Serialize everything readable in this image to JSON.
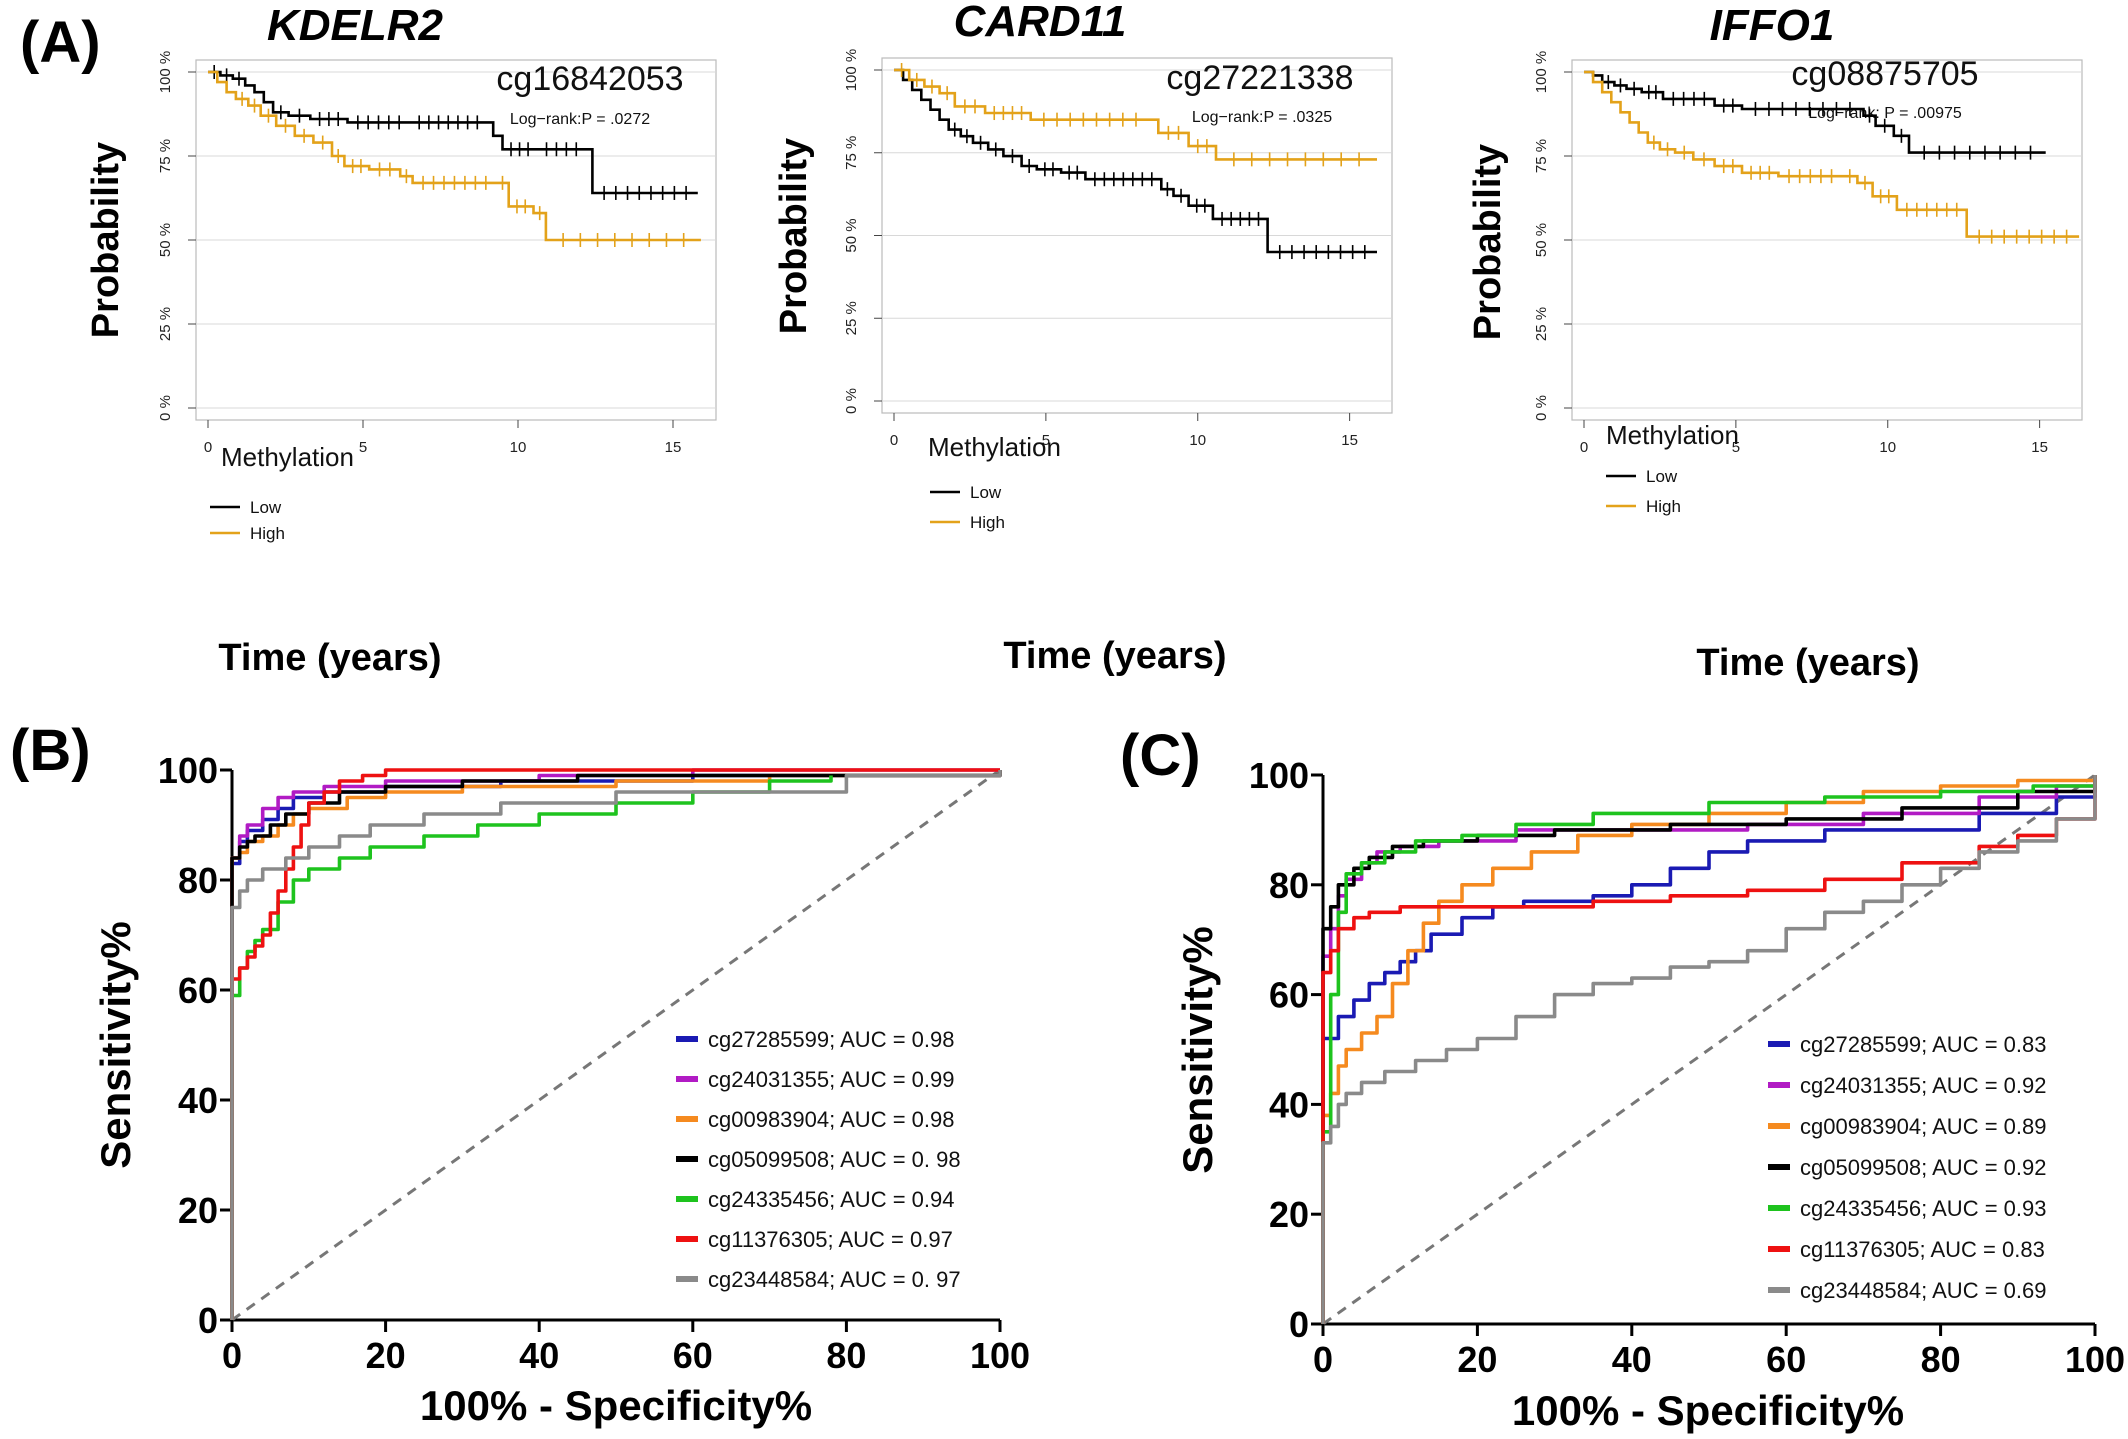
{
  "panels": {
    "a": "(A)",
    "b": "(B)",
    "c": "(C)"
  },
  "chart_data": [
    {
      "type": "line",
      "subtype": "kaplan-meier",
      "title": "KDELR2",
      "probe": "cg16842053",
      "logrank": "Log−rank:P = .0272",
      "xlabel": "Time (years)",
      "ylabel": "Probability",
      "xlim": [
        0,
        16
      ],
      "ylim": [
        0,
        100
      ],
      "xticks": [
        "0",
        "5",
        "10",
        "15"
      ],
      "yticks": [
        "0 %",
        "25 %",
        "50 %",
        "75 %",
        "100 %"
      ],
      "legend_title": "Methylation",
      "legend": [
        "Low",
        "High"
      ],
      "grid": true,
      "series": [
        {
          "name": "Low",
          "color": "#000000",
          "x": [
            0,
            0.4,
            0.8,
            1.2,
            1.5,
            1.8,
            2.1,
            2.6,
            3.3,
            4.5,
            6.5,
            9.0,
            9.2,
            9.5,
            10.6,
            12.2,
            12.4,
            15.8
          ],
          "y": [
            100,
            99,
            98,
            96,
            94,
            91,
            88,
            87,
            86,
            85,
            85,
            85,
            81,
            77,
            77,
            77,
            64,
            64
          ]
        },
        {
          "name": "High",
          "color": "#e3a21a",
          "x": [
            0,
            0.3,
            0.6,
            0.9,
            1.3,
            1.7,
            2.2,
            2.8,
            3.4,
            4.0,
            4.4,
            5.2,
            6.2,
            6.6,
            9.3,
            9.7,
            10.5,
            10.9,
            15.9
          ],
          "y": [
            100,
            97,
            94,
            92,
            90,
            87,
            84,
            81,
            79,
            75,
            72,
            71,
            69,
            67,
            67,
            60,
            58,
            50,
            50
          ]
        }
      ]
    },
    {
      "type": "line",
      "subtype": "kaplan-meier",
      "title": "CARD11",
      "probe": "cg27221338",
      "logrank": "Log−rank:P = .0325",
      "xlabel": "Time (years)",
      "ylabel": "Probability",
      "xlim": [
        0,
        16
      ],
      "ylim": [
        0,
        100
      ],
      "xticks": [
        "0",
        "5",
        "10",
        "15"
      ],
      "yticks": [
        "0 %",
        "25 %",
        "50 %",
        "75 %",
        "100 %"
      ],
      "legend_title": "Methylation",
      "legend": [
        "Low",
        "High"
      ],
      "grid": true,
      "series": [
        {
          "name": "Low",
          "color": "#000000",
          "x": [
            0,
            0.3,
            0.6,
            0.9,
            1.2,
            1.5,
            1.8,
            2.2,
            2.6,
            3.1,
            3.6,
            4.2,
            4.7,
            5.5,
            6.3,
            8.8,
            9.2,
            9.7,
            10.5,
            12.3,
            15.9
          ],
          "y": [
            100,
            97,
            94,
            91,
            88,
            85,
            82,
            80,
            78,
            76,
            74,
            71,
            70,
            69,
            67,
            64,
            62,
            59,
            55,
            45,
            45
          ]
        },
        {
          "name": "High",
          "color": "#e3a21a",
          "x": [
            0,
            0.5,
            1.0,
            1.5,
            2.0,
            3.0,
            4.5,
            8.4,
            8.7,
            9.7,
            10.6,
            15.9
          ],
          "y": [
            100,
            97,
            95,
            93,
            89,
            87,
            85,
            85,
            81,
            77,
            73,
            73
          ]
        }
      ]
    },
    {
      "type": "line",
      "subtype": "kaplan-meier",
      "title": "IFFO1",
      "probe": "cg08875705",
      "logrank": "Log−rank: P = .00975",
      "xlabel": "Time (years)",
      "ylabel": "Probability",
      "xlim": [
        0,
        16
      ],
      "ylim": [
        0,
        100
      ],
      "xticks": [
        "0",
        "5",
        "10",
        "15"
      ],
      "yticks": [
        "0 %",
        "25 %",
        "50 %",
        "75 %",
        "100 %"
      ],
      "legend_title": "Methylation",
      "legend": [
        "Low",
        "High"
      ],
      "grid": true,
      "series": [
        {
          "name": "Low",
          "color": "#000000",
          "x": [
            0,
            0.3,
            0.6,
            1.0,
            1.4,
            1.9,
            2.6,
            4.3,
            5.2,
            9.2,
            9.6,
            10.2,
            10.7,
            15.2
          ],
          "y": [
            100,
            99,
            97,
            96,
            95,
            94,
            92,
            90,
            89,
            87,
            84,
            81,
            76,
            76
          ]
        },
        {
          "name": "High",
          "color": "#e3a21a",
          "x": [
            0,
            0.3,
            0.6,
            0.9,
            1.2,
            1.5,
            1.8,
            2.1,
            2.5,
            3.0,
            3.6,
            4.3,
            5.2,
            6.4,
            8.5,
            9.0,
            9.5,
            10.3,
            12.6,
            16.3
          ],
          "y": [
            100,
            97,
            94,
            91,
            88,
            85,
            82,
            79,
            77,
            76,
            74,
            72,
            70,
            69,
            69,
            67,
            63,
            59,
            51,
            51
          ]
        }
      ]
    },
    {
      "type": "line",
      "subtype": "roc",
      "xlabel": "100% - Specificity%",
      "ylabel": "Sensitivity%",
      "xlim": [
        0,
        100
      ],
      "ylim": [
        0,
        100
      ],
      "xticks": [
        "0",
        "20",
        "40",
        "60",
        "80",
        "100"
      ],
      "yticks": [
        "0",
        "20",
        "40",
        "60",
        "80",
        "100"
      ],
      "legend_position": "bottom-right",
      "series": [
        {
          "name": "cg27285599; AUC = 0.98",
          "color": "#1a1ab3",
          "x": [
            0,
            0,
            1,
            2,
            4,
            6,
            8,
            12,
            20,
            35,
            60,
            100
          ],
          "y": [
            0,
            83,
            87,
            89,
            91,
            93,
            95,
            96,
            97,
            98,
            99,
            100
          ]
        },
        {
          "name": "cg24031355; AUC = 0.99",
          "color": "#b11bc4",
          "x": [
            0,
            0,
            1,
            2,
            4,
            6,
            8,
            12,
            20,
            40,
            60,
            100
          ],
          "y": [
            0,
            84,
            88,
            90,
            93,
            95,
            96,
            97,
            98,
            99,
            100,
            100
          ]
        },
        {
          "name": "cg00983904; AUC = 0.98",
          "color": "#f58a1f",
          "x": [
            0,
            0,
            1,
            2,
            4,
            6,
            8,
            10,
            15,
            20,
            30,
            50,
            70,
            100
          ],
          "y": [
            0,
            84,
            85,
            87,
            88,
            90,
            92,
            93,
            95,
            96,
            97,
            98,
            99,
            100
          ]
        },
        {
          "name": "cg05099508; AUC = 0. 98",
          "color": "#000000",
          "x": [
            0,
            0,
            1,
            2,
            3,
            5,
            7,
            10,
            14,
            20,
            30,
            45,
            100
          ],
          "y": [
            0,
            84,
            86,
            87,
            88,
            90,
            92,
            94,
            96,
            97,
            98,
            99,
            100
          ]
        },
        {
          "name": "cg24335456; AUC = 0.94",
          "color": "#1ec31e",
          "x": [
            0,
            0,
            1,
            2,
            3,
            4,
            6,
            8,
            10,
            14,
            18,
            25,
            32,
            40,
            50,
            60,
            70,
            78
          ],
          "y": [
            0,
            59,
            64,
            67,
            69,
            71,
            76,
            80,
            82,
            84,
            86,
            88,
            90,
            92,
            94,
            96,
            98,
            99
          ]
        },
        {
          "name": "cg11376305; AUC = 0.97",
          "color": "#ee1111",
          "x": [
            0,
            0,
            1,
            2,
            3,
            4,
            5,
            6,
            7,
            8,
            9,
            10,
            12,
            14,
            17,
            20,
            25,
            35,
            100
          ],
          "y": [
            0,
            62,
            64,
            66,
            68,
            70,
            74,
            78,
            82,
            86,
            90,
            94,
            96,
            98,
            99,
            100,
            100,
            100,
            100
          ]
        },
        {
          "name": "cg23448584; AUC = 0. 97",
          "color": "#8a8a8a",
          "x": [
            0,
            0,
            1,
            2,
            4,
            7,
            10,
            14,
            18,
            25,
            35,
            50,
            80,
            100
          ],
          "y": [
            0,
            75,
            78,
            80,
            82,
            84,
            86,
            88,
            90,
            92,
            94,
            96,
            99,
            100
          ]
        }
      ]
    },
    {
      "type": "line",
      "subtype": "roc",
      "xlabel": "100% - Specificity%",
      "ylabel": "Sensitivity%",
      "xlim": [
        0,
        100
      ],
      "ylim": [
        0,
        100
      ],
      "xticks": [
        "0",
        "20",
        "40",
        "60",
        "80",
        "100"
      ],
      "yticks": [
        "0",
        "20",
        "40",
        "60",
        "80",
        "100"
      ],
      "legend_position": "bottom-right",
      "series": [
        {
          "name": "cg27285599; AUC = 0.83",
          "color": "#1a1ab3",
          "x": [
            0,
            0,
            2,
            4,
            6,
            8,
            10,
            12,
            14,
            18,
            22,
            26,
            30,
            35,
            40,
            45,
            50,
            55,
            65,
            75,
            85,
            95,
            100
          ],
          "y": [
            0,
            52,
            56,
            59,
            62,
            64,
            66,
            68,
            71,
            74,
            76,
            77,
            77,
            78,
            80,
            83,
            86,
            88,
            90,
            90,
            93,
            96,
            100
          ]
        },
        {
          "name": "cg24031355; AUC = 0.92",
          "color": "#b11bc4",
          "x": [
            0,
            0,
            1,
            2,
            3,
            5,
            7,
            10,
            15,
            25,
            40,
            55,
            70,
            85,
            95,
            100
          ],
          "y": [
            0,
            67,
            72,
            78,
            81,
            84,
            86,
            87,
            88,
            90,
            90,
            91,
            93,
            96,
            98,
            100
          ]
        },
        {
          "name": "cg00983904; AUC = 0.89",
          "color": "#f58a1f",
          "x": [
            0,
            0,
            1,
            2,
            3,
            5,
            7,
            9,
            11,
            13,
            15,
            18,
            22,
            27,
            33,
            40,
            50,
            60,
            70,
            80,
            90,
            100
          ],
          "y": [
            0,
            38,
            42,
            47,
            50,
            53,
            56,
            62,
            68,
            73,
            77,
            80,
            83,
            86,
            89,
            91,
            93,
            95,
            97,
            98,
            99,
            100
          ]
        },
        {
          "name": "cg05099508; AUC = 0.92",
          "color": "#000000",
          "x": [
            0,
            0,
            1,
            2,
            4,
            6,
            9,
            13,
            20,
            30,
            45,
            60,
            75,
            90,
            100
          ],
          "y": [
            0,
            72,
            76,
            80,
            83,
            85,
            87,
            88,
            89,
            90,
            91,
            92,
            94,
            97,
            100
          ]
        },
        {
          "name": "cg24335456; AUC = 0.93",
          "color": "#1ec31e",
          "x": [
            0,
            0,
            1,
            2,
            3,
            5,
            8,
            12,
            18,
            25,
            35,
            50,
            65,
            80,
            92,
            100
          ],
          "y": [
            0,
            35,
            60,
            75,
            82,
            84,
            86,
            88,
            89,
            91,
            93,
            95,
            96,
            97,
            98,
            100
          ]
        },
        {
          "name": "cg11376305; AUC = 0.83",
          "color": "#ee1111",
          "x": [
            0,
            0,
            1,
            2,
            4,
            6,
            10,
            15,
            20,
            25,
            35,
            45,
            55,
            65,
            75,
            85,
            90,
            95,
            100
          ],
          "y": [
            0,
            64,
            68,
            72,
            74,
            75,
            76,
            76,
            76,
            76,
            77,
            78,
            79,
            81,
            84,
            87,
            89,
            92,
            100
          ]
        },
        {
          "name": "cg23448584; AUC = 0.69",
          "color": "#8a8a8a",
          "x": [
            0,
            0,
            1,
            2,
            3,
            5,
            8,
            12,
            16,
            20,
            25,
            30,
            35,
            40,
            45,
            50,
            55,
            60,
            65,
            70,
            75,
            80,
            85,
            90,
            95,
            100
          ],
          "y": [
            0,
            33,
            36,
            40,
            42,
            44,
            46,
            48,
            50,
            52,
            56,
            60,
            62,
            63,
            65,
            66,
            68,
            72,
            75,
            77,
            80,
            83,
            86,
            88,
            92,
            100
          ]
        }
      ]
    }
  ]
}
